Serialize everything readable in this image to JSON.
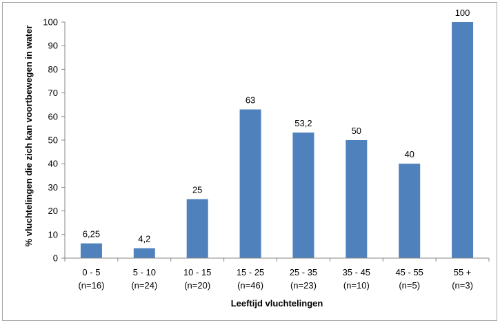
{
  "chart_data": {
    "type": "bar",
    "title": "",
    "xlabel": "Leeftijd vluchtelingen",
    "ylabel": "% vluchtelingen die zich kan voortbewegen in water",
    "ylim": [
      0,
      100
    ],
    "yticks": [
      0,
      10,
      20,
      30,
      40,
      50,
      60,
      70,
      80,
      90,
      100
    ],
    "grid": false,
    "legend": "none",
    "bar_color": "#4f81bd",
    "categories": [
      [
        "0 - 5",
        "(n=16)"
      ],
      [
        "5 - 10",
        "(n=24)"
      ],
      [
        "10 - 15",
        "(n=20)"
      ],
      [
        "15 - 25",
        "(n=46)"
      ],
      [
        "25 - 35",
        "(n=23)"
      ],
      [
        "35 - 45",
        "(n=10)"
      ],
      [
        "45 - 55",
        "(n=5)"
      ],
      [
        "55 +",
        "(n=3)"
      ]
    ],
    "values": [
      6.25,
      4.2,
      25,
      63,
      53.2,
      50,
      40,
      100
    ],
    "data_labels": [
      "6,25",
      "4,2",
      "25",
      "63",
      "53,2",
      "50",
      "40",
      "100"
    ]
  }
}
